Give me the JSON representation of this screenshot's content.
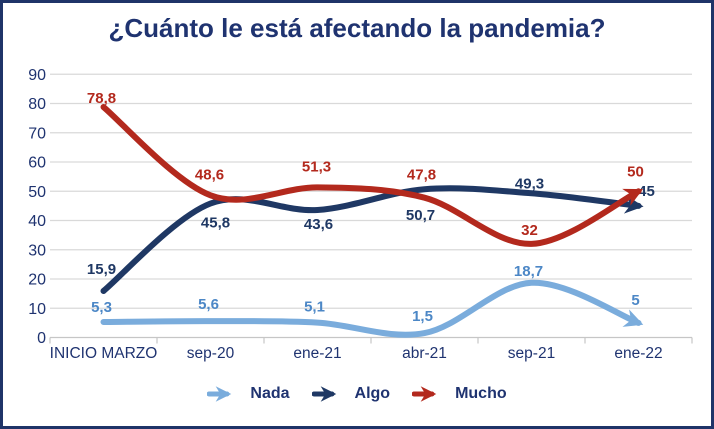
{
  "title": "¿Cuánto le está afectando la pandemia?",
  "colors": {
    "frame_border": "#1f3468",
    "background": "#ffffff",
    "text_navy": "#1f3370",
    "gridline": "#d9d9d9",
    "axis_line": "#c6c6c6"
  },
  "chart_data": {
    "type": "line",
    "title": "¿Cuánto le está afectando la pandemia?",
    "categories": [
      "INICIO MARZO",
      "sep-20",
      "ene-21",
      "abr-21",
      "sep-21",
      "ene-22"
    ],
    "x_tick_labels": [
      "INICIO MARZO",
      "sep-20",
      "ene-21",
      "abr-21",
      "sep-21",
      "ene-22"
    ],
    "y_axis": {
      "min": 0,
      "max": 90,
      "step": 10,
      "tick_labels": [
        "0",
        "10",
        "20",
        "30",
        "40",
        "50",
        "60",
        "70",
        "80",
        "90"
      ]
    },
    "grid": true,
    "smooth": true,
    "arrow_ends": true,
    "legend_position": "bottom",
    "series": [
      {
        "name": "Nada",
        "color": "#7aacdc",
        "label_color": "#4c87c6",
        "values": [
          5.3,
          5.6,
          5.1,
          1.5,
          18.7,
          5
        ],
        "data_labels": [
          "5,3",
          "5,6",
          "5,1",
          "1,5",
          "18,7",
          "5"
        ],
        "label_offsets": [
          [
            -2,
            -15
          ],
          [
            -2,
            -17
          ],
          [
            -3,
            -16
          ],
          [
            -2,
            -17
          ],
          [
            -3,
            -12
          ],
          [
            -3,
            -23
          ]
        ]
      },
      {
        "name": "Algo",
        "color": "#1f3864",
        "label_color": "#1f3864",
        "values": [
          15.9,
          45.8,
          43.6,
          50.7,
          49.3,
          45
        ],
        "data_labels": [
          "15,9",
          "45,8",
          "43,6",
          "50,7",
          "49,3",
          "45"
        ],
        "label_offsets": [
          [
            -2,
            -22
          ],
          [
            5,
            19
          ],
          [
            1,
            14
          ],
          [
            -4,
            26
          ],
          [
            -2,
            -10
          ],
          [
            8,
            -15
          ]
        ]
      },
      {
        "name": "Mucho",
        "color": "#b3291d",
        "label_color": "#b3291d",
        "values": [
          78.8,
          48.6,
          51.3,
          47.8,
          32,
          50
        ],
        "data_labels": [
          "78,8",
          "48,6",
          "51,3",
          "47,8",
          "32",
          "50"
        ],
        "label_offsets": [
          [
            -2,
            -9
          ],
          [
            -1,
            -21
          ],
          [
            -1,
            -21
          ],
          [
            -3,
            -23
          ],
          [
            -2,
            -14
          ],
          [
            -3,
            -20
          ]
        ]
      }
    ]
  },
  "legend": {
    "items": [
      {
        "label": "Nada",
        "color": "#7aacdc"
      },
      {
        "label": "Algo",
        "color": "#1f3864"
      },
      {
        "label": "Mucho",
        "color": "#b3291d"
      }
    ]
  }
}
